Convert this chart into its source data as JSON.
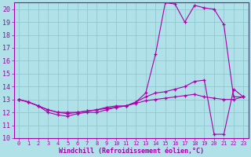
{
  "bg_color": "#b0e0e8",
  "grid_color": "#90c8d0",
  "line_color": "#aa00aa",
  "xlabel": "Windchill (Refroidissement éolien,°C)",
  "xlabel_fontsize": 6,
  "tick_fontsize": 5,
  "xlim": [
    -0.5,
    23.5
  ],
  "ylim": [
    10,
    20.5
  ],
  "yticks": [
    10,
    11,
    12,
    13,
    14,
    15,
    16,
    17,
    18,
    19,
    20
  ],
  "xticks": [
    0,
    1,
    2,
    3,
    4,
    5,
    6,
    7,
    8,
    9,
    10,
    11,
    12,
    13,
    14,
    15,
    16,
    17,
    18,
    19,
    20,
    21,
    22,
    23
  ],
  "line1_x": [
    0,
    1,
    2,
    3,
    4,
    5,
    6,
    7,
    8,
    9,
    10,
    11,
    12,
    13,
    14,
    15,
    16,
    17,
    18,
    19,
    20,
    21,
    22,
    23
  ],
  "line1_y": [
    13.0,
    12.8,
    12.5,
    12.0,
    11.8,
    11.7,
    11.9,
    12.0,
    12.0,
    12.2,
    12.4,
    12.5,
    12.8,
    13.5,
    16.5,
    20.5,
    20.4,
    19.0,
    20.3,
    20.1,
    20.0,
    18.8,
    13.2,
    13.2
  ],
  "line2_x": [
    0,
    1,
    2,
    3,
    4,
    5,
    6,
    7,
    8,
    9,
    10,
    11,
    12,
    13,
    14,
    15,
    16,
    17,
    18,
    19,
    20,
    21,
    22,
    23
  ],
  "line2_y": [
    13.0,
    12.8,
    12.5,
    12.2,
    12.0,
    12.0,
    12.0,
    12.1,
    12.2,
    12.4,
    12.5,
    12.5,
    12.8,
    13.2,
    13.5,
    13.6,
    13.8,
    14.0,
    14.4,
    14.5,
    10.3,
    10.3,
    13.8,
    13.2
  ],
  "line3_x": [
    0,
    1,
    2,
    3,
    4,
    5,
    6,
    7,
    8,
    9,
    10,
    11,
    12,
    13,
    14,
    15,
    16,
    17,
    18,
    19,
    20,
    21,
    22,
    23
  ],
  "line3_y": [
    13.0,
    12.8,
    12.5,
    12.2,
    12.0,
    11.9,
    12.0,
    12.1,
    12.2,
    12.3,
    12.4,
    12.5,
    12.7,
    12.9,
    13.0,
    13.1,
    13.2,
    13.3,
    13.4,
    13.2,
    13.1,
    13.0,
    13.0,
    13.2
  ]
}
